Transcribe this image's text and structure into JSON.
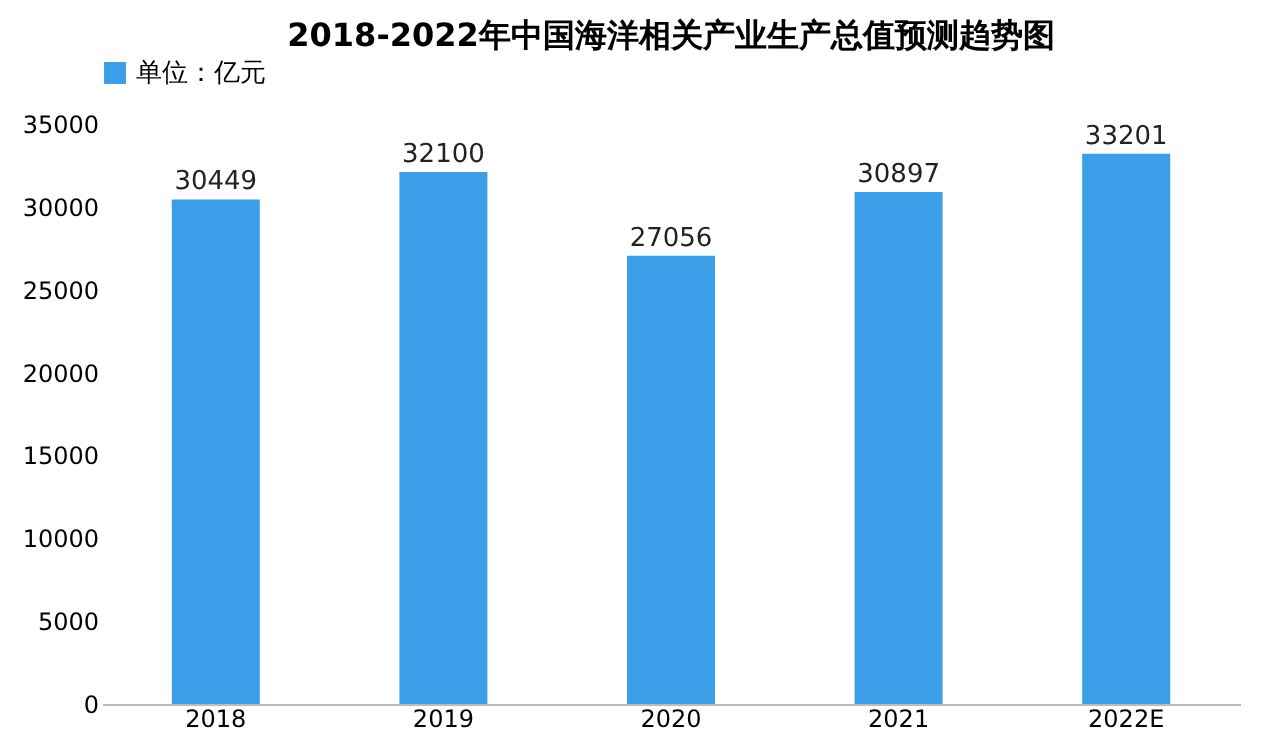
{
  "chart_data": {
    "type": "bar",
    "title": "2018-2022年中国海洋相关产业生产总值预测趋势图",
    "categories": [
      "2018",
      "2019",
      "2020",
      "2021",
      "2022E"
    ],
    "series": [
      {
        "name": "单位：亿元",
        "color": "#3a9ee8",
        "values": [
          30449,
          32100,
          27056,
          30897,
          33201
        ]
      }
    ],
    "ylim": [
      0,
      35000
    ],
    "yticks": [
      0,
      5000,
      10000,
      15000,
      20000,
      25000,
      30000,
      35000
    ],
    "grid": false,
    "legend": "top",
    "data_labels": true
  }
}
